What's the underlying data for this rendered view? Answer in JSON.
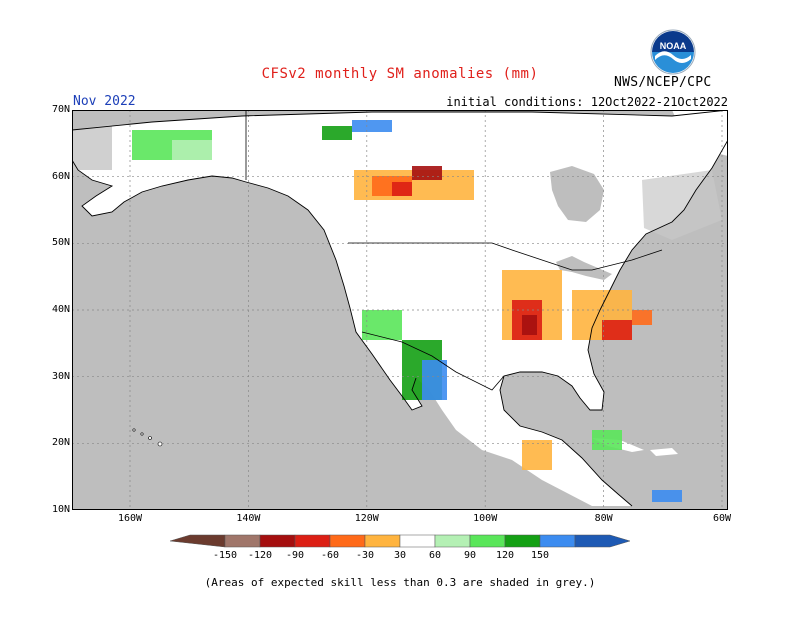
{
  "title": "CFSv2 monthly SM anomalies (mm)",
  "month": "Nov 2022",
  "initial_conditions": "initial conditions: 12Oct2022-21Oct2022",
  "agency": "NWS/NCEP/CPC",
  "logo_text": "NOAA",
  "map": {
    "lat_labels": [
      "70N",
      "60N",
      "50N",
      "40N",
      "30N",
      "20N",
      "10N"
    ],
    "lon_labels": [
      "160W",
      "140W",
      "120W",
      "100W",
      "80W",
      "60W"
    ],
    "colors": {
      "ocean": "#bebebe",
      "land": "#ffffff",
      "skill_mask": "#c8c8c8"
    }
  },
  "colorbar": {
    "labels": [
      "-150",
      "-120",
      "-90",
      "-60",
      "-30",
      "30",
      "60",
      "90",
      "120",
      "150"
    ],
    "colors": [
      "#6b3b2e",
      "#a0766a",
      "#a50f0f",
      "#dc1f14",
      "#ff6a19",
      "#ffb43f",
      "#ffffff",
      "#b4f0b4",
      "#5ae65a",
      "#14a014",
      "#3c8cf0",
      "#1e5ab4"
    ]
  },
  "footnote": "(Areas of expected skill less than 0.3 are shaded in grey.)"
}
